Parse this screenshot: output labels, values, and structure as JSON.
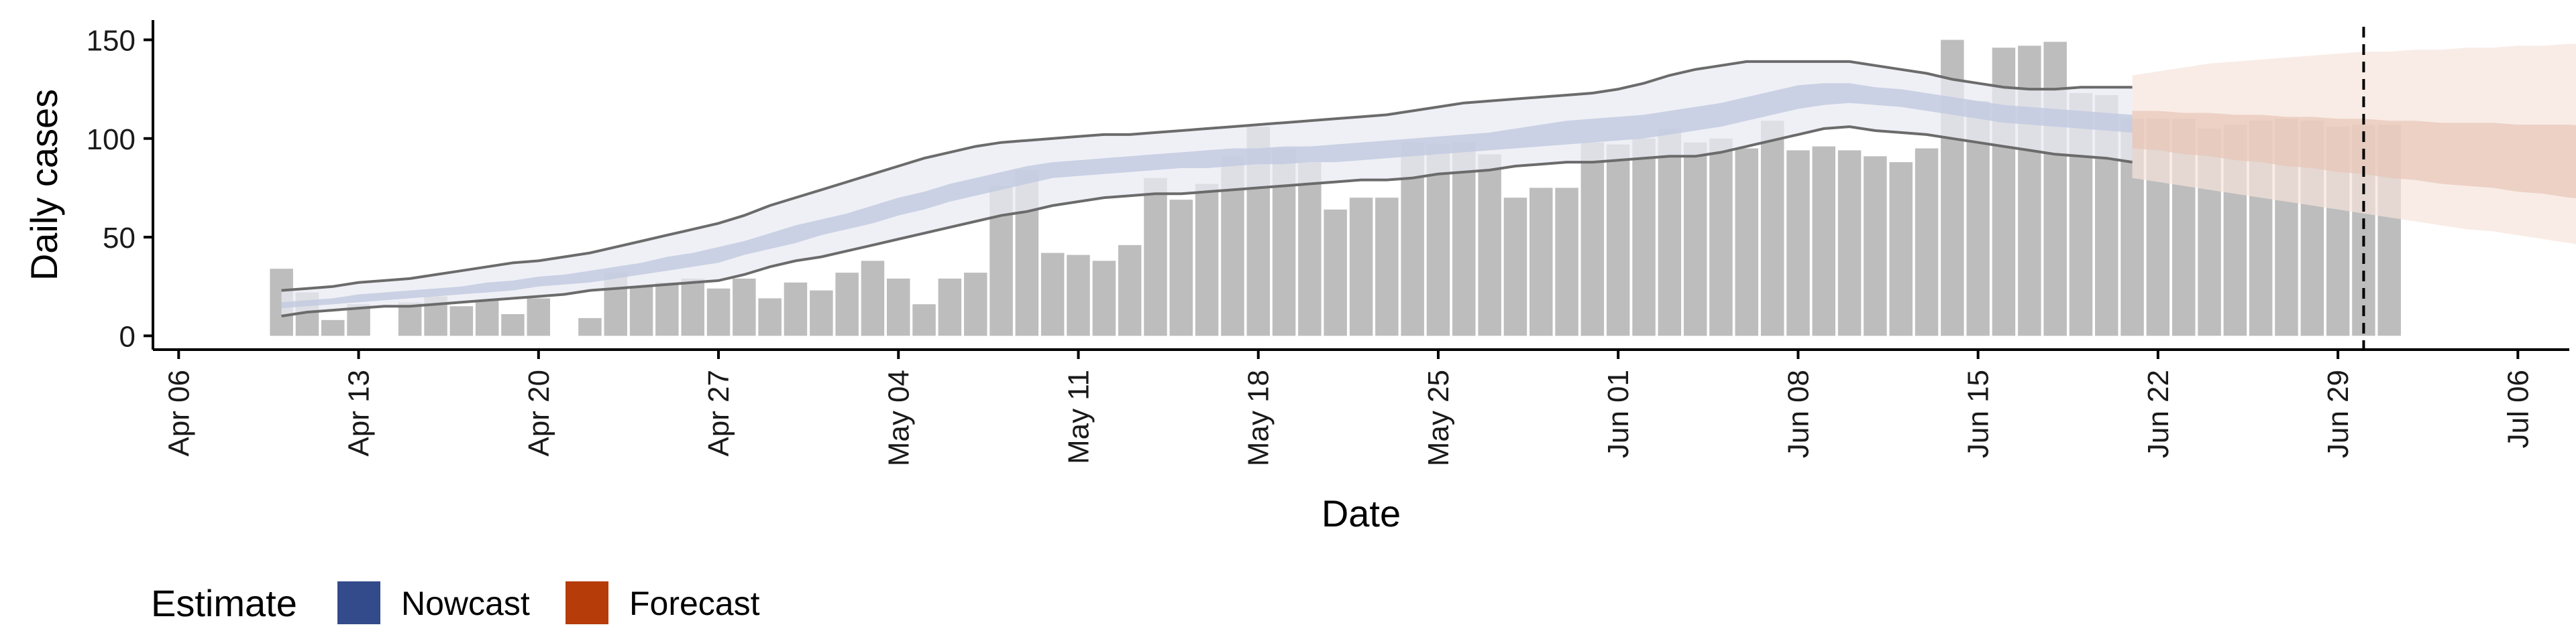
{
  "chart_data": {
    "type": "bar",
    "xlabel": "Date",
    "ylabel": "Daily cases",
    "xlim": [
      "2020-04-05",
      "2020-07-08"
    ],
    "ylim": [
      -7,
      160
    ],
    "x_ticks": [
      "Apr 06",
      "Apr 13",
      "Apr 20",
      "Apr 27",
      "May 04",
      "May 11",
      "May 18",
      "May 25",
      "Jun 01",
      "Jun 08",
      "Jun 15",
      "Jun 22",
      "Jun 29",
      "Jul 06"
    ],
    "y_ticks": [
      0,
      50,
      100,
      150
    ],
    "observation_start": "2020-04-10",
    "observed_daily_cases": [
      34,
      22,
      8,
      16,
      0,
      17,
      20,
      15,
      18,
      11,
      19,
      0,
      9,
      32,
      25,
      27,
      29,
      24,
      29,
      19,
      27,
      23,
      32,
      38,
      29,
      16,
      29,
      32,
      76,
      84,
      42,
      41,
      38,
      46,
      80,
      69,
      77,
      91,
      106,
      95,
      88,
      64,
      70,
      70,
      98,
      97,
      98,
      92,
      70,
      75,
      75,
      98,
      97,
      100,
      105,
      98,
      100,
      95,
      109,
      94,
      96,
      94,
      91,
      88,
      95,
      150,
      119,
      146,
      147,
      149,
      123,
      122,
      110,
      110,
      110,
      105,
      107,
      109,
      110,
      109,
      106,
      107,
      107
    ],
    "estimate_start": "2020-04-10",
    "nowcast_ci90_lower": [
      10,
      12,
      13,
      14,
      15,
      15,
      16,
      17,
      18,
      19,
      20,
      21,
      23,
      24,
      25,
      26,
      27,
      28,
      31,
      35,
      38,
      40,
      43,
      46,
      49,
      52,
      55,
      58,
      61,
      63,
      66,
      68,
      70,
      71,
      72,
      72,
      73,
      74,
      75,
      76,
      77,
      78,
      79,
      79,
      80,
      82,
      83,
      84,
      86,
      87,
      88,
      88,
      89,
      90,
      91,
      91,
      93,
      96,
      99,
      102,
      105,
      106,
      104,
      103,
      102,
      100,
      98,
      96,
      94,
      92,
      91,
      90,
      88
    ],
    "nowcast_ci90_upper": [
      23,
      24,
      25,
      27,
      28,
      29,
      31,
      33,
      35,
      37,
      38,
      40,
      42,
      45,
      48,
      51,
      54,
      57,
      61,
      66,
      70,
      74,
      78,
      82,
      86,
      90,
      93,
      96,
      98,
      99,
      100,
      101,
      102,
      102,
      103,
      104,
      105,
      106,
      107,
      108,
      109,
      110,
      111,
      112,
      114,
      116,
      118,
      119,
      120,
      121,
      122,
      123,
      125,
      128,
      132,
      135,
      137,
      139,
      139,
      139,
      139,
      139,
      137,
      135,
      133,
      130,
      128,
      126,
      125,
      125,
      126,
      126,
      126
    ],
    "nowcast_ci50_lower": [
      14,
      15,
      16,
      17,
      18,
      19,
      20,
      21,
      22,
      23,
      25,
      26,
      27,
      29,
      31,
      33,
      35,
      37,
      41,
      44,
      47,
      51,
      54,
      57,
      61,
      64,
      68,
      71,
      74,
      77,
      80,
      81,
      82,
      83,
      84,
      85,
      85,
      86,
      87,
      87,
      88,
      88,
      89,
      90,
      91,
      92,
      93,
      94,
      95,
      96,
      97,
      98,
      99,
      100,
      102,
      104,
      106,
      109,
      112,
      115,
      117,
      118,
      117,
      116,
      114,
      112,
      110,
      108,
      107,
      106,
      105,
      104,
      103
    ],
    "nowcast_ci50_upper": [
      17,
      18,
      19,
      21,
      22,
      23,
      24,
      25,
      27,
      28,
      30,
      31,
      33,
      35,
      37,
      40,
      42,
      45,
      48,
      52,
      56,
      59,
      62,
      66,
      70,
      73,
      77,
      80,
      83,
      86,
      88,
      89,
      90,
      91,
      92,
      93,
      94,
      95,
      95,
      96,
      96,
      97,
      98,
      99,
      100,
      101,
      102,
      103,
      105,
      107,
      109,
      110,
      111,
      112,
      114,
      116,
      118,
      121,
      124,
      127,
      128,
      128,
      126,
      125,
      123,
      121,
      119,
      117,
      116,
      115,
      114,
      113,
      112
    ],
    "forecast_start": "2020-06-21",
    "forecast_ci90_lower": [
      80,
      78,
      76,
      74,
      72,
      70,
      68,
      66,
      64,
      62,
      60,
      58,
      56,
      54,
      53,
      51,
      49,
      47,
      45,
      43,
      41,
      39
    ],
    "forecast_ci90_upper": [
      132,
      134,
      136,
      138,
      139,
      140,
      141,
      142,
      143,
      144,
      144,
      145,
      145,
      146,
      146,
      147,
      147,
      148,
      148,
      149,
      149,
      150
    ],
    "forecast_ci50_lower": [
      95,
      94,
      92,
      91,
      89,
      88,
      86,
      85,
      83,
      82,
      80,
      79,
      77,
      76,
      75,
      73,
      72,
      70,
      69,
      67,
      66,
      64
    ],
    "forecast_ci50_upper": [
      114,
      114,
      113,
      113,
      112,
      112,
      111,
      111,
      110,
      110,
      109,
      109,
      108,
      108,
      108,
      107,
      107,
      107,
      106,
      106,
      106,
      106
    ],
    "vline_date": "2020-06-30",
    "legend": {
      "title": "Estimate",
      "position": "bottom-left",
      "items": [
        {
          "label": "Nowcast",
          "color": "#344b8b"
        },
        {
          "label": "Forecast",
          "color": "#b63c0a"
        }
      ]
    },
    "colors": {
      "bars": "#bdbdbd",
      "nowcast_ci90": "#e9ebf3",
      "nowcast_ci50": "#c3cbe0",
      "forecast_ci90": "#f6e4dc",
      "forecast_ci50": "#e8c6b7",
      "ci_lines": "#6b6b6b"
    },
    "grid": false
  }
}
